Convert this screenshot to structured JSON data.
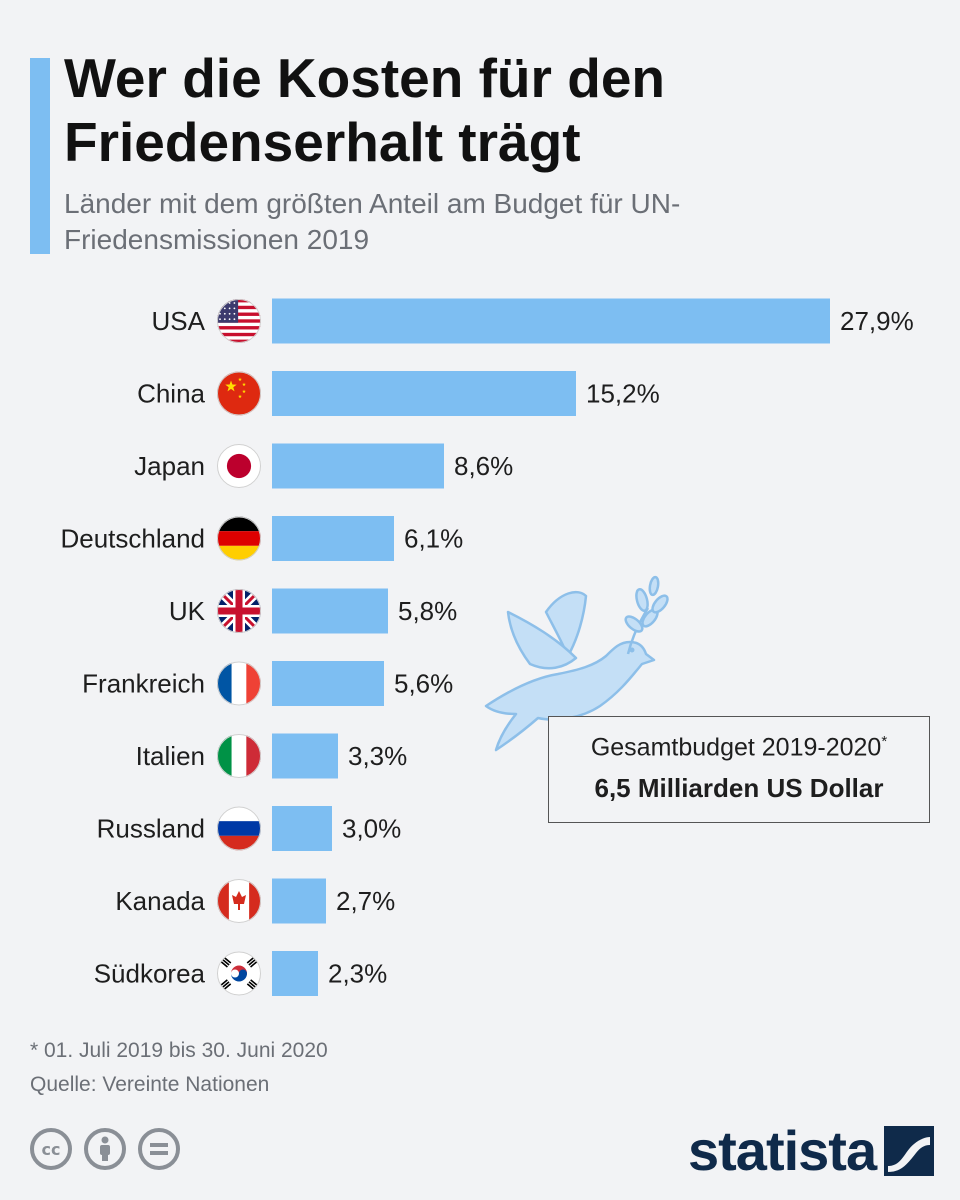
{
  "header": {
    "title": "Wer die Kosten für den Friedenserhalt trägt",
    "subtitle": "Länder mit dem größten Anteil am Budget für UN-Friedensmissionen 2019"
  },
  "chart_data": {
    "type": "bar",
    "orientation": "horizontal",
    "categories": [
      "USA",
      "China",
      "Japan",
      "Deutschland",
      "UK",
      "Frankreich",
      "Italien",
      "Russland",
      "Kanada",
      "Südkorea"
    ],
    "values": [
      27.9,
      15.2,
      8.6,
      6.1,
      5.8,
      5.6,
      3.3,
      3.0,
      2.7,
      2.3
    ],
    "value_labels": [
      "27,9%",
      "15,2%",
      "8,6%",
      "6,1%",
      "5,8%",
      "5,6%",
      "3,3%",
      "3,0%",
      "2,7%",
      "2,3%"
    ],
    "unit": "%",
    "title": "Wer die Kosten für den Friedenserhalt trägt",
    "grid": false,
    "bar_color": "#7dbef2",
    "flags": [
      "us-flag-icon",
      "china-flag-icon",
      "japan-flag-icon",
      "germany-flag-icon",
      "uk-flag-icon",
      "france-flag-icon",
      "italy-flag-icon",
      "russia-flag-icon",
      "canada-flag-icon",
      "south-korea-flag-icon"
    ]
  },
  "annotation": {
    "line1": "Gesamtbudget 2019-2020",
    "line1_marker": "*",
    "line2": "6,5 Milliarden US Dollar"
  },
  "footer": {
    "footnote": "* 01. Juli 2019 bis 30. Juni 2020",
    "source": "Quelle: Vereinte Nationen",
    "brand": "statista"
  },
  "colors": {
    "accent": "#7dbef2",
    "title": "#111111",
    "muted": "#6b6f76",
    "brand": "#0f2a4a",
    "background": "#f2f3f5"
  }
}
